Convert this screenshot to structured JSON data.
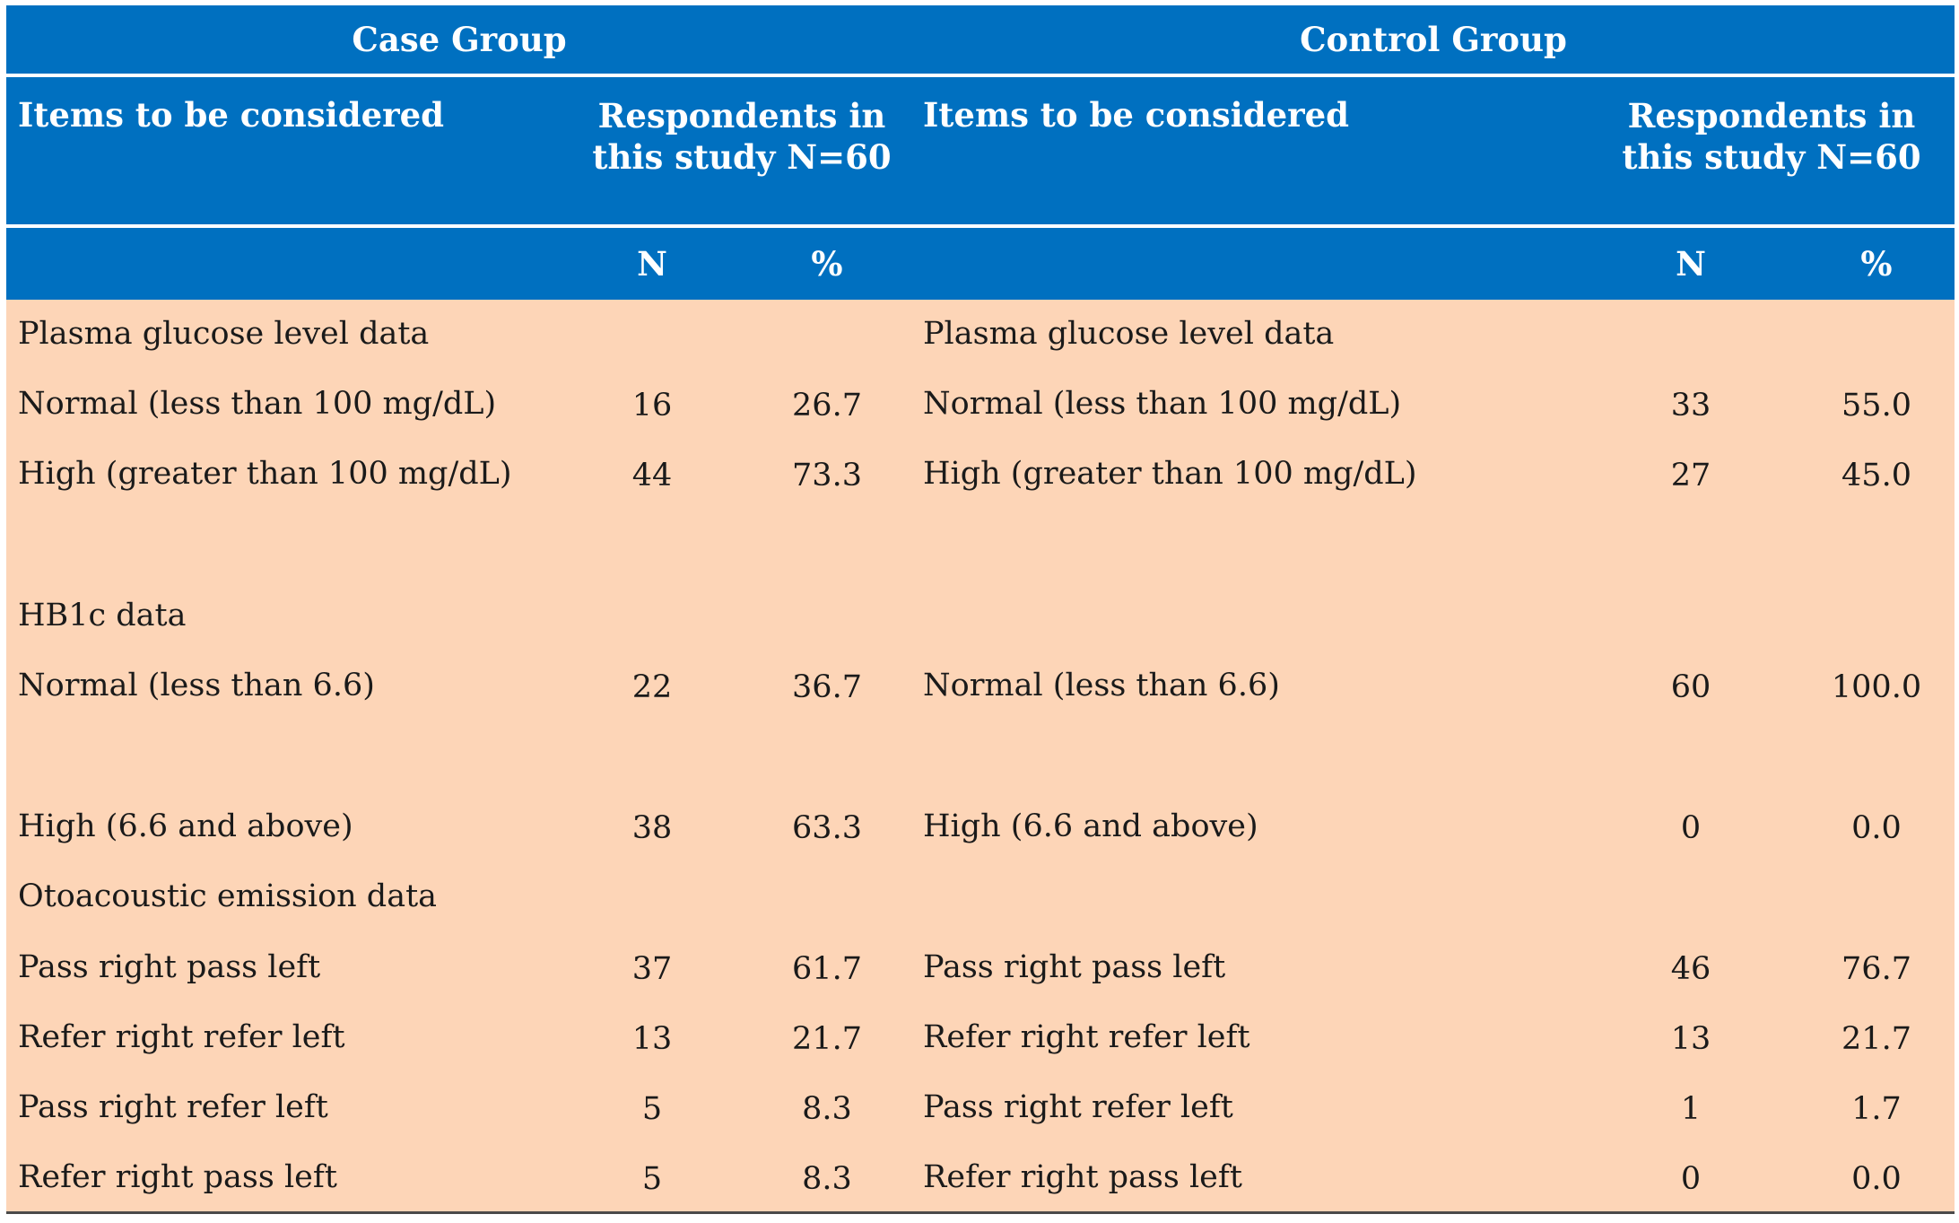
{
  "header": {
    "case_group": "Case Group",
    "control_group": "Control Group",
    "items_label": "Items to be considered",
    "respondents_label_case": "Respondents in this study N=60",
    "respondents_label_control": "Respondents in this study N=60",
    "n_label": "N",
    "pct_label": "%"
  },
  "rows": [
    {
      "left_label": "Plasma glucose level data",
      "left_n": "",
      "left_pct": "",
      "right_label": "Plasma glucose level data",
      "right_n": "",
      "right_pct": ""
    },
    {
      "left_label": "Normal (less than 100 mg/dL)",
      "left_n": "16",
      "left_pct": "26.7",
      "right_label": "Normal (less than 100 mg/dL)",
      "right_n": "33",
      "right_pct": "55.0"
    },
    {
      "left_label": "High (greater than 100 mg/dL)",
      "left_n": "44",
      "left_pct": "73.3",
      "right_label": "High (greater than 100 mg/dL)",
      "right_n": "27",
      "right_pct": "45.0"
    },
    {
      "left_label": "HB1c data",
      "left_n": "",
      "left_pct": "",
      "right_label": "",
      "right_n": "",
      "right_pct": ""
    },
    {
      "left_label": "Normal (less than 6.6)",
      "left_n": "22",
      "left_pct": "36.7",
      "right_label": "Normal (less than 6.6)",
      "right_n": "60",
      "right_pct": "100.0"
    },
    {
      "left_label": "High (6.6 and above)",
      "left_n": "38",
      "left_pct": "63.3",
      "right_label": "High (6.6 and above)",
      "right_n": "0",
      "right_pct": "0.0"
    },
    {
      "left_label": "Otoacoustic emission data",
      "left_n": "",
      "left_pct": "",
      "right_label": "",
      "right_n": "",
      "right_pct": ""
    },
    {
      "left_label": "Pass right pass left",
      "left_n": "37",
      "left_pct": "61.7",
      "right_label": "Pass right pass left",
      "right_n": "46",
      "right_pct": "76.7"
    },
    {
      "left_label": "Refer right refer left",
      "left_n": "13",
      "left_pct": "21.7",
      "right_label": "Refer right refer left",
      "right_n": "13",
      "right_pct": "21.7"
    },
    {
      "left_label": "Pass right refer left",
      "left_n": "5",
      "left_pct": "8.3",
      "right_label": "Pass right refer left",
      "right_n": "1",
      "right_pct": "1.7"
    },
    {
      "left_label": "Refer right pass left",
      "left_n": "5",
      "left_pct": "8.3",
      "right_label": "Refer right pass left",
      "right_n": "0",
      "right_pct": "0.0"
    }
  ],
  "colors": {
    "header_bg": "#0070c0",
    "body_bg": "#fdd5b7",
    "header_text": "#ffffff"
  }
}
